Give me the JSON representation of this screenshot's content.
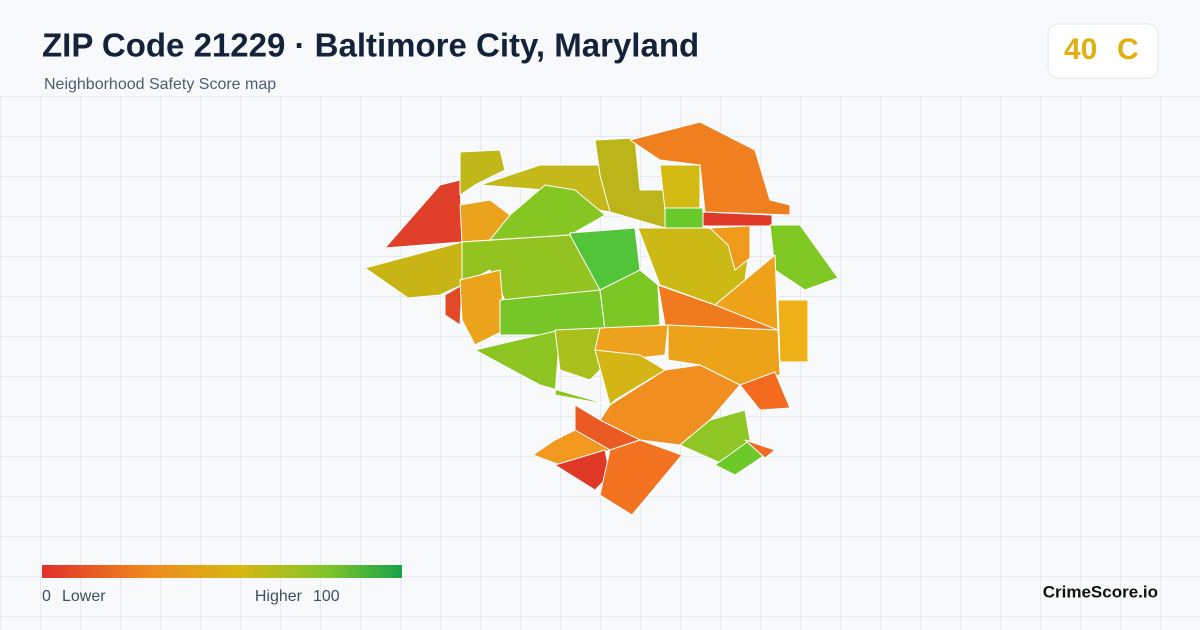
{
  "header": {
    "title": "ZIP Code 21229 · Baltimore City, Maryland",
    "subtitle": "Neighborhood Safety Score map"
  },
  "score": {
    "value": 40,
    "grade": "C"
  },
  "legend": {
    "min": 0,
    "min_label": "Lower",
    "max_label": "Higher",
    "max": 100
  },
  "brand": "CrimeScore.io"
}
